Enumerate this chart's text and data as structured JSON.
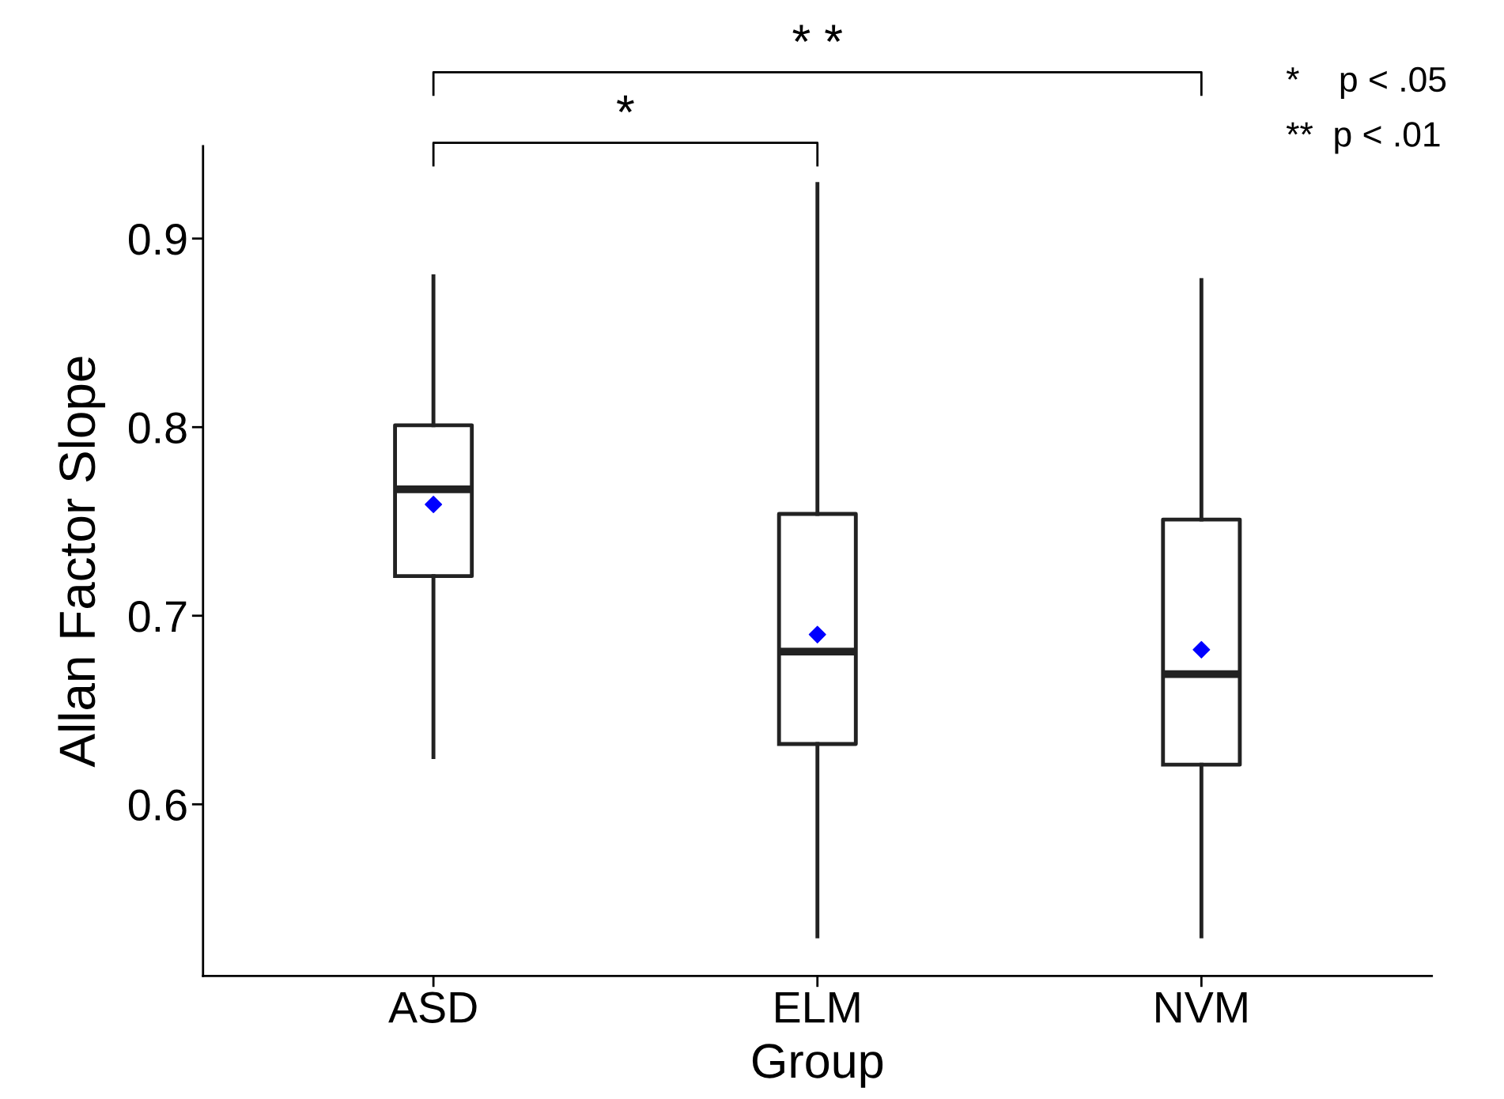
{
  "chart_data": {
    "type": "box",
    "xlabel": "Group",
    "ylabel": "Allan Factor Slope",
    "categories": [
      "ASD",
      "ELM",
      "NVM"
    ],
    "boxes": [
      {
        "low": 0.625,
        "q1": 0.721,
        "median": 0.767,
        "q3": 0.801,
        "high": 0.88
      },
      {
        "low": 0.53,
        "q1": 0.632,
        "median": 0.681,
        "q3": 0.754,
        "high": 0.929
      },
      {
        "low": 0.53,
        "q1": 0.621,
        "median": 0.669,
        "q3": 0.751,
        "high": 0.878
      }
    ],
    "color": "#222222",
    "series": [
      {
        "type": "scatter",
        "x": [
          "ASD",
          "ELM",
          "NVM"
        ],
        "values": [
          0.759,
          0.69,
          0.682
        ],
        "color": "#0000ff"
      }
    ],
    "marker": "diamond",
    "ylim": [
      0.509,
      0.949
    ],
    "yticks": [
      0.6,
      0.7,
      0.8,
      0.9
    ],
    "grid": false,
    "annotations": [
      "*",
      "* *",
      "*    p < .05",
      "**  p < .01"
    ]
  }
}
